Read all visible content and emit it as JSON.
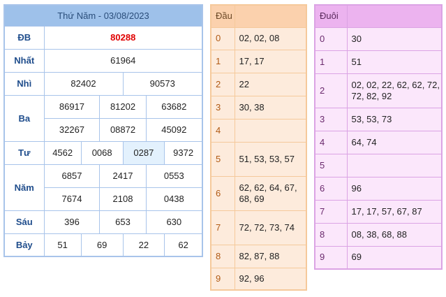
{
  "results": {
    "title": "Thứ Năm - 03/08/2023",
    "rows": [
      {
        "label": "ĐB",
        "values": [
          "80288"
        ]
      },
      {
        "label": "Nhất",
        "values": [
          "61964"
        ]
      },
      {
        "label": "Nhì",
        "values": [
          "82402",
          "90573"
        ]
      },
      {
        "label": "Ba",
        "values": [
          "86917",
          "81202",
          "63682",
          "32267",
          "08872",
          "45092"
        ]
      },
      {
        "label": "Tư",
        "values": [
          "4562",
          "0068",
          "0287",
          "9372"
        ]
      },
      {
        "label": "Năm",
        "values": [
          "6857",
          "2417",
          "0553",
          "7674",
          "2108",
          "0438"
        ]
      },
      {
        "label": "Sáu",
        "values": [
          "396",
          "653",
          "630"
        ]
      },
      {
        "label": "Bảy",
        "values": [
          "51",
          "69",
          "22",
          "62"
        ]
      }
    ]
  },
  "dau": {
    "header": "Đầu",
    "rows": [
      {
        "key": "0",
        "value": "02, 02, 08"
      },
      {
        "key": "1",
        "value": "17, 17"
      },
      {
        "key": "2",
        "value": "22"
      },
      {
        "key": "3",
        "value": "30, 38"
      },
      {
        "key": "4",
        "value": ""
      },
      {
        "key": "5",
        "value": "51, 53, 53, 57"
      },
      {
        "key": "6",
        "value": "62, 62, 64, 67, 68, 69"
      },
      {
        "key": "7",
        "value": "72, 72, 73, 74"
      },
      {
        "key": "8",
        "value": "82, 87, 88"
      },
      {
        "key": "9",
        "value": "92, 96"
      }
    ]
  },
  "duoi": {
    "header": "Đuôi",
    "rows": [
      {
        "key": "0",
        "value": "30"
      },
      {
        "key": "1",
        "value": "51"
      },
      {
        "key": "2",
        "value": "02, 02, 22, 62, 62, 72, 72, 82, 92"
      },
      {
        "key": "3",
        "value": "53, 53, 73"
      },
      {
        "key": "4",
        "value": "64, 74"
      },
      {
        "key": "5",
        "value": ""
      },
      {
        "key": "6",
        "value": "96"
      },
      {
        "key": "7",
        "value": "17, 17, 57, 67, 87"
      },
      {
        "key": "8",
        "value": "08, 38, 68, 88"
      },
      {
        "key": "9",
        "value": "69"
      }
    ]
  }
}
